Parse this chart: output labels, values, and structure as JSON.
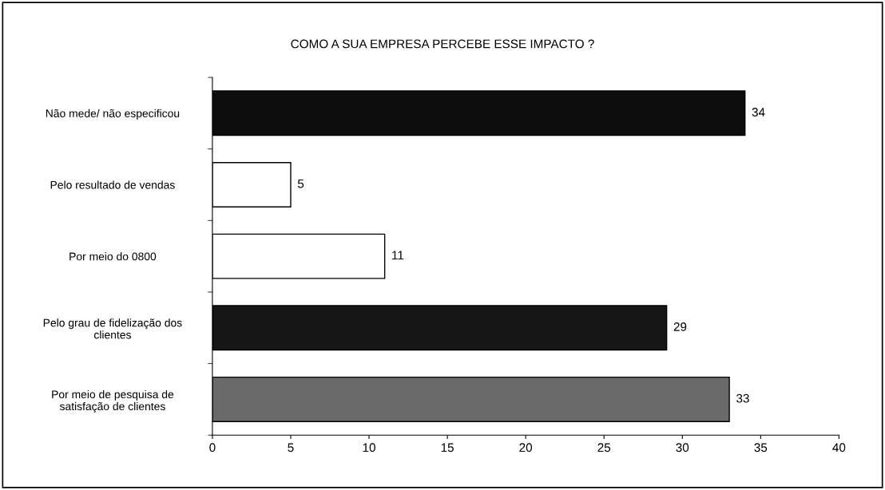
{
  "chart_data": {
    "type": "bar",
    "orientation": "horizontal",
    "title": "COMO A SUA EMPRESA PERCEBE ESSE IMPACTO ?",
    "categories": [
      "Não mede/ não especificou",
      "Pelo resultado de vendas",
      "Por meio do 0800",
      "Pelo grau de fidelização dos clientes",
      "Por meio de pesquisa de satisfação de clientes"
    ],
    "values": [
      34,
      5,
      11,
      29,
      33
    ],
    "colors": [
      "#0d0d0d",
      "#ffffff",
      "#ffffff",
      "#161616",
      "#6a6a6a"
    ],
    "xlim": [
      0,
      40
    ],
    "xticks": [
      0,
      5,
      10,
      15,
      20,
      25,
      30,
      35,
      40
    ],
    "data_labels": true,
    "grid": false,
    "legend": false
  }
}
